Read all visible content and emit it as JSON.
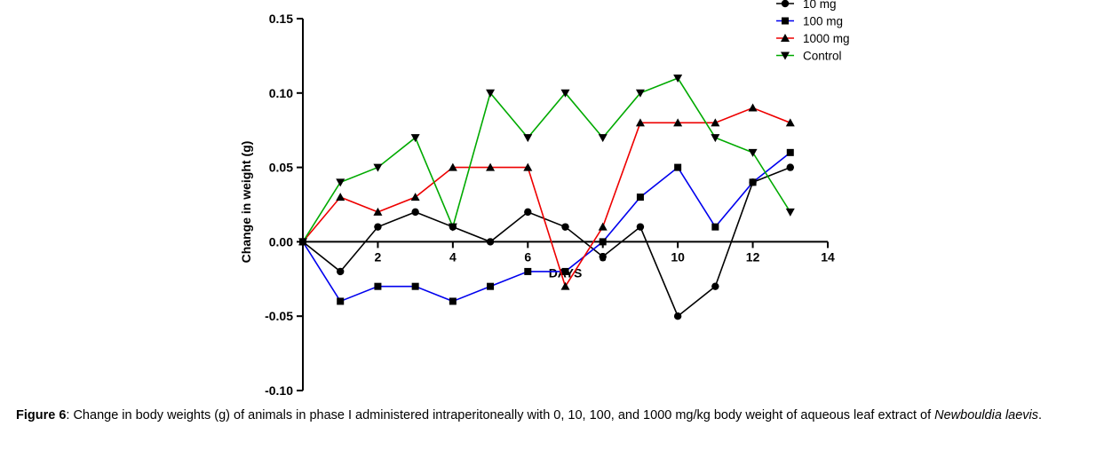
{
  "chart_data": {
    "type": "line",
    "xlabel": "DAYS",
    "ylabel": "Change in weight (g)",
    "xlim": [
      0,
      14
    ],
    "ylim": [
      -0.1,
      0.15
    ],
    "xticks": [
      2,
      4,
      6,
      8,
      10,
      12,
      14
    ],
    "yticks": [
      -0.1,
      -0.05,
      0.0,
      0.05,
      0.1,
      0.15
    ],
    "ytick_labels": [
      "-0.10",
      "-0.05",
      "0.00",
      "0.05",
      "0.10",
      "0.15"
    ],
    "legend_position": "top-right",
    "grid": false,
    "x": [
      0,
      1,
      2,
      3,
      4,
      5,
      6,
      7,
      8,
      9,
      10,
      11,
      12,
      13
    ],
    "series": [
      {
        "name": "10 mg",
        "color": "#000000",
        "marker": "circle",
        "values": [
          0.0,
          -0.02,
          0.01,
          0.02,
          0.01,
          0.0,
          0.02,
          0.01,
          -0.01,
          0.01,
          -0.05,
          -0.03,
          0.04,
          0.05
        ]
      },
      {
        "name": "100 mg",
        "color": "#0000ee",
        "marker": "square",
        "values": [
          0.0,
          -0.04,
          -0.03,
          -0.03,
          -0.04,
          -0.03,
          -0.02,
          -0.02,
          0.0,
          0.03,
          0.05,
          0.01,
          0.04,
          0.06
        ]
      },
      {
        "name": "1000 mg",
        "color": "#ee0000",
        "marker": "triangle-up",
        "values": [
          0.0,
          0.03,
          0.02,
          0.03,
          0.05,
          0.05,
          0.05,
          -0.03,
          0.01,
          0.08,
          0.08,
          0.08,
          0.09,
          0.08
        ]
      },
      {
        "name": "Control",
        "color": "#00aa00",
        "marker": "triangle-down",
        "values": [
          0.0,
          0.04,
          0.05,
          0.07,
          0.01,
          0.1,
          0.07,
          0.1,
          0.07,
          0.1,
          0.11,
          0.07,
          0.06,
          0.02
        ]
      }
    ]
  },
  "caption": {
    "label": "Figure 6",
    "text": ": Change in body weights (g) of animals in phase I administered intraperitoneally with 0, 10, 100, and 1000 mg/kg body weight of aqueous leaf extract of ",
    "species": "Newbouldia laevis",
    "end": "."
  }
}
